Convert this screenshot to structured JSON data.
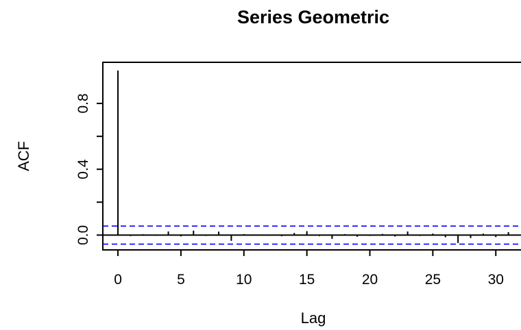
{
  "chart_data": {
    "type": "bar",
    "title": "Series  Geometric",
    "xlabel": "Lag",
    "ylabel": "ACF",
    "xlim": [
      -1.2,
      32
    ],
    "ylim": [
      -0.09,
      1.05
    ],
    "xticks": [
      0,
      5,
      10,
      15,
      20,
      25,
      30
    ],
    "xtick_labels": [
      "0",
      "5",
      "10",
      "15",
      "20",
      "25",
      "30"
    ],
    "yticks": [
      0.0,
      0.2,
      0.4,
      0.6,
      0.8
    ],
    "ytick_labels": [
      "0.0",
      "",
      "0.4",
      "",
      "0.8"
    ],
    "zero_line": 0,
    "confidence_bound": 0.055,
    "confidence_bound_color": "#0000ff",
    "bar_color": "#000000",
    "grid": false,
    "lags": [
      0,
      1,
      2,
      3,
      4,
      5,
      6,
      7,
      8,
      9,
      10,
      11,
      12,
      13,
      14,
      15,
      16,
      17,
      18,
      19,
      20,
      21,
      22,
      23,
      24,
      25,
      26,
      27,
      28,
      29,
      30,
      31
    ],
    "acf": [
      1.0,
      -0.006,
      0.005,
      -0.004,
      0.022,
      -0.008,
      0.027,
      -0.005,
      0.021,
      -0.035,
      0.006,
      0.004,
      -0.004,
      -0.007,
      0.013,
      0.024,
      -0.006,
      -0.023,
      0.006,
      -0.01,
      -0.005,
      0.007,
      -0.009,
      0.022,
      -0.005,
      0.009,
      -0.013,
      -0.048,
      -0.018,
      0.009,
      -0.012,
      0.018
    ]
  }
}
